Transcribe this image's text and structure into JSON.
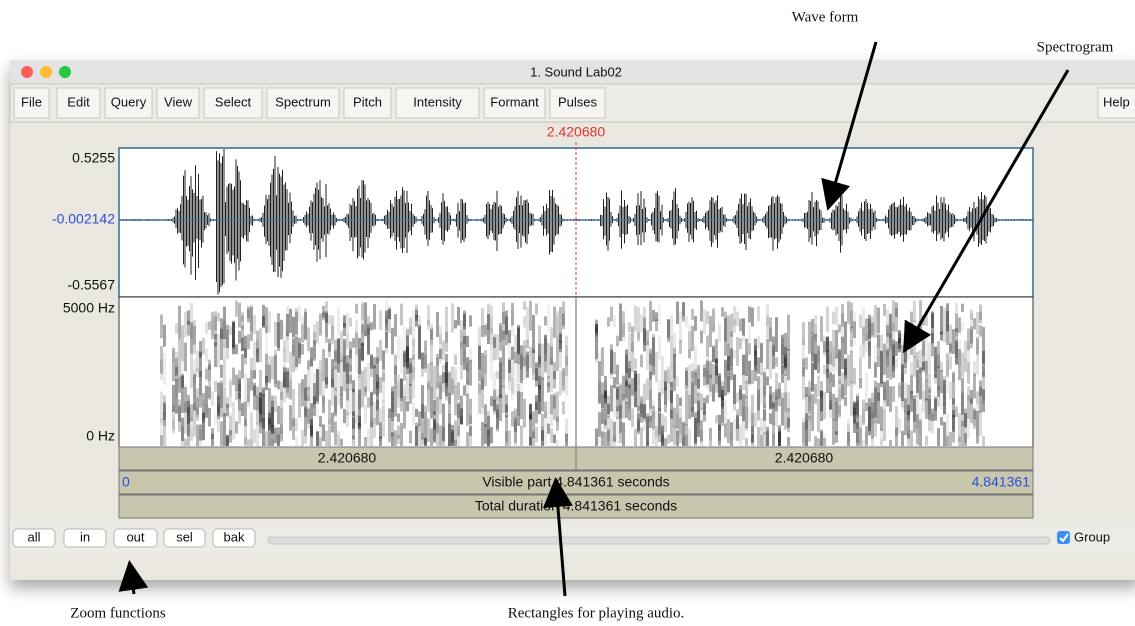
{
  "annotations": {
    "wave_form": "Wave form",
    "spectrogram": "Spectrogram",
    "zoom": "Zoom functions",
    "rectangles": "Rectangles for playing audio."
  },
  "window": {
    "title": "1. Sound Lab02",
    "menu": [
      "File",
      "Edit",
      "Query",
      "View",
      "Select",
      "Spectrum",
      "Pitch",
      "Intensity",
      "Formant",
      "Pulses"
    ],
    "help": "Help",
    "cursor": "2.420680",
    "wave_axis": {
      "top": "0.5255",
      "mid": "-0.002142",
      "bottom": "-0.5567"
    },
    "spec_axis": {
      "top": "5000 Hz",
      "bottom": "0 Hz"
    },
    "bars": {
      "left": "2.420680",
      "right": "2.420680",
      "visible_start": "0",
      "visible": "Visible part 4.841361 seconds",
      "visible_end": "4.841361",
      "total": "Total duration 4.841361 seconds"
    },
    "buttons": [
      "all",
      "in",
      "out",
      "sel",
      "bak"
    ],
    "group": "Group"
  }
}
